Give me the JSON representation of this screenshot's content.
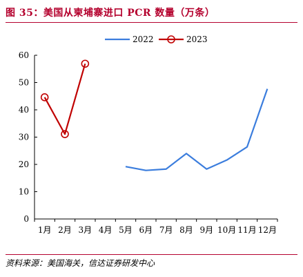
{
  "figure": {
    "title": "图 35：美国从柬埔寨进口 PCR 数量（万条）",
    "source": "资料来源：美国海关，信达证券研发中心"
  },
  "chart_data": {
    "type": "line",
    "title": "图 35：美国从柬埔寨进口 PCR 数量（万条）",
    "xlabel": "",
    "ylabel": "",
    "categories": [
      "1月",
      "2月",
      "3月",
      "4月",
      "5月",
      "6月",
      "7月",
      "8月",
      "9月",
      "10月",
      "11月",
      "12月"
    ],
    "ylim": [
      0,
      60
    ],
    "yticks": [
      0,
      10,
      20,
      30,
      40,
      50,
      60
    ],
    "grid": false,
    "legend_position": "top",
    "series": [
      {
        "name": "2022",
        "color": "#3b7ddd",
        "marker": "none",
        "values": [
          null,
          null,
          null,
          null,
          19.2,
          17.8,
          18.3,
          24.0,
          18.3,
          21.6,
          26.4,
          47.7
        ]
      },
      {
        "name": "2023",
        "color": "#c00000",
        "marker": "circle",
        "values": [
          44.6,
          31.1,
          56.9,
          null,
          null,
          null,
          null,
          null,
          null,
          null,
          null,
          null
        ]
      }
    ]
  }
}
